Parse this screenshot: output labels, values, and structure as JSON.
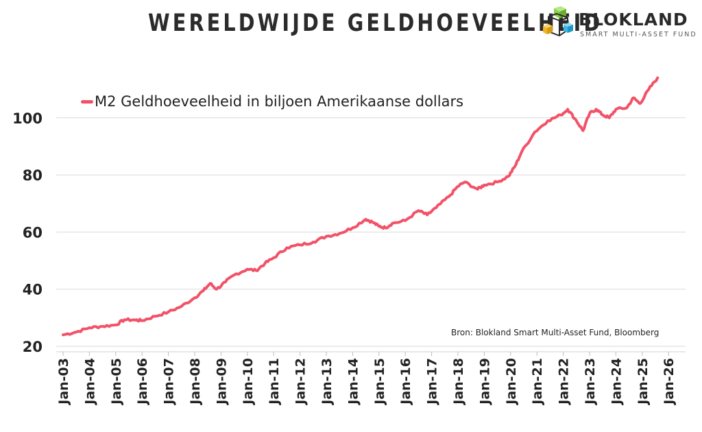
{
  "header": {
    "title": "WERELDWIJDE GELDHOEVEELHEID"
  },
  "logo": {
    "name": "BLOKLAND",
    "subtitle": "SMART MULTI-ASSET FUND",
    "colors": [
      "#8bd04a",
      "#f0b429",
      "#3bb9e6",
      "#2a2a2a"
    ]
  },
  "source": "Bron: Blokland Smart Multi-Asset Fund, Bloomberg",
  "chart_data": {
    "type": "line",
    "title": "WERELDWIJDE GELDHOEVEELHEID",
    "xlabel": "",
    "ylabel": "",
    "ylim": [
      20,
      116
    ],
    "yticks": [
      20,
      40,
      60,
      80,
      100
    ],
    "xtick_labels": [
      "Jan-03",
      "Jan-04",
      "Jan-05",
      "Jan-06",
      "Jan-07",
      "Jan-08",
      "Jan-09",
      "Jan-10",
      "Jan-11",
      "Jan-12",
      "Jan-13",
      "Jan-14",
      "Jan-15",
      "Jan-16",
      "Jan-17",
      "Jan-18",
      "Jan-19",
      "Jan-20",
      "Jan-21",
      "Jan-22",
      "Jan-23",
      "Jan-24",
      "Jan-25",
      "Jan-26"
    ],
    "grid": "horizontal",
    "legend_position": "top-left",
    "series": [
      {
        "name": "M2 Geldhoeveelheid in biljoen Amerikaanse dollars",
        "color": "#f25268",
        "points": [
          [
            "2003-01",
            24.0
          ],
          [
            "2003-07",
            25.0
          ],
          [
            "2004-01",
            26.5
          ],
          [
            "2004-07",
            27.0
          ],
          [
            "2005-01",
            27.5
          ],
          [
            "2005-05",
            29.3
          ],
          [
            "2005-10",
            29.2
          ],
          [
            "2006-01",
            29.0
          ],
          [
            "2006-07",
            30.5
          ],
          [
            "2007-01",
            32.0
          ],
          [
            "2007-07",
            34.0
          ],
          [
            "2008-01",
            37.0
          ],
          [
            "2008-05",
            39.5
          ],
          [
            "2008-08",
            42.0
          ],
          [
            "2008-11",
            40.0
          ],
          [
            "2009-03",
            42.5
          ],
          [
            "2009-07",
            45.0
          ],
          [
            "2010-01",
            47.0
          ],
          [
            "2010-05",
            46.5
          ],
          [
            "2010-09",
            49.0
          ],
          [
            "2011-01",
            51.0
          ],
          [
            "2011-07",
            54.5
          ],
          [
            "2012-01",
            55.5
          ],
          [
            "2012-07",
            56.5
          ],
          [
            "2013-01",
            58.5
          ],
          [
            "2013-07",
            59.5
          ],
          [
            "2014-01",
            61.5
          ],
          [
            "2014-07",
            64.5
          ],
          [
            "2014-10",
            63.5
          ],
          [
            "2015-01",
            62.0
          ],
          [
            "2015-04",
            61.5
          ],
          [
            "2015-07",
            63.0
          ],
          [
            "2016-01",
            64.0
          ],
          [
            "2016-07",
            67.5
          ],
          [
            "2016-11",
            66.0
          ],
          [
            "2017-03",
            68.5
          ],
          [
            "2017-09",
            72.5
          ],
          [
            "2018-01",
            76.0
          ],
          [
            "2018-04",
            77.5
          ],
          [
            "2018-10",
            75.0
          ],
          [
            "2019-01",
            76.5
          ],
          [
            "2019-07",
            77.5
          ],
          [
            "2019-12",
            79.5
          ],
          [
            "2020-03",
            83.0
          ],
          [
            "2020-06",
            88.0
          ],
          [
            "2020-12",
            95.0
          ],
          [
            "2021-06",
            99.0
          ],
          [
            "2021-12",
            101.0
          ],
          [
            "2022-03",
            103.0
          ],
          [
            "2022-07",
            99.0
          ],
          [
            "2022-10",
            95.5
          ],
          [
            "2023-01",
            101.5
          ],
          [
            "2023-04",
            103.0
          ],
          [
            "2023-07",
            101.0
          ],
          [
            "2023-10",
            100.0
          ],
          [
            "2024-01",
            103.0
          ],
          [
            "2024-06",
            103.5
          ],
          [
            "2024-09",
            107.0
          ],
          [
            "2024-12",
            105.0
          ],
          [
            "2025-04",
            110.0
          ],
          [
            "2025-08",
            114.0
          ]
        ]
      }
    ]
  }
}
